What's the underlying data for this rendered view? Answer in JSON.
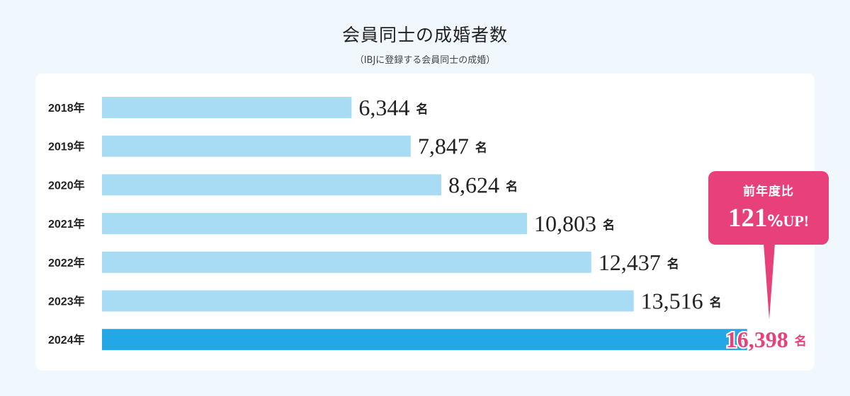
{
  "header": {
    "title": "会員同士の成婚者数",
    "subtitle": "（IBJに登録する会員同士の成婚）"
  },
  "unit": "名",
  "callout": {
    "label": "前年度比",
    "number": "121",
    "percent": "%",
    "suffix": "UP!"
  },
  "colors": {
    "bar": "#a8dcf5",
    "bar_highlight": "#22a8e6",
    "accent": "#e8407a",
    "background": "#f0f7fd",
    "card": "#ffffff"
  },
  "chart_data": {
    "type": "bar",
    "orientation": "horizontal",
    "title": "会員同士の成婚者数",
    "subtitle": "（IBJに登録する会員同士の成婚）",
    "categories": [
      "2018年",
      "2019年",
      "2020年",
      "2021年",
      "2022年",
      "2023年",
      "2024年"
    ],
    "values": [
      6344,
      7847,
      8624,
      10803,
      12437,
      13516,
      16398
    ],
    "value_labels": [
      "6,344",
      "7,847",
      "8,624",
      "10,803",
      "12,437",
      "13,516",
      "16,398"
    ],
    "highlight_index": 6,
    "xlim": [
      0,
      18000
    ],
    "grid": false,
    "legend": "none"
  }
}
